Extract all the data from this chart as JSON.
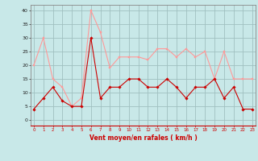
{
  "x": [
    0,
    1,
    2,
    3,
    4,
    5,
    6,
    7,
    8,
    9,
    10,
    11,
    12,
    13,
    14,
    15,
    16,
    17,
    18,
    19,
    20,
    21,
    22,
    23
  ],
  "wind_avg": [
    4,
    8,
    12,
    7,
    5,
    5,
    30,
    8,
    12,
    12,
    15,
    15,
    12,
    12,
    15,
    12,
    8,
    12,
    12,
    15,
    8,
    12,
    4,
    4
  ],
  "wind_gust": [
    20,
    30,
    15,
    12,
    5,
    8,
    40,
    32,
    19,
    23,
    23,
    23,
    22,
    26,
    26,
    23,
    26,
    23,
    25,
    15,
    25,
    15,
    15,
    15
  ],
  "bg_color": "#c8e8e8",
  "grid_color": "#a0c0c0",
  "avg_color": "#cc0000",
  "gust_color": "#ff9999",
  "xlabel": "Vent moyen/en rafales ( km/h )",
  "xlabel_color": "#cc0000",
  "yticks": [
    0,
    5,
    10,
    15,
    20,
    25,
    30,
    35,
    40
  ],
  "xticks": [
    0,
    1,
    2,
    3,
    4,
    5,
    6,
    7,
    8,
    9,
    10,
    11,
    12,
    13,
    14,
    15,
    16,
    17,
    18,
    19,
    20,
    21,
    22,
    23
  ],
  "ylim": [
    -2,
    42
  ],
  "xlim": [
    -0.3,
    23.3
  ]
}
